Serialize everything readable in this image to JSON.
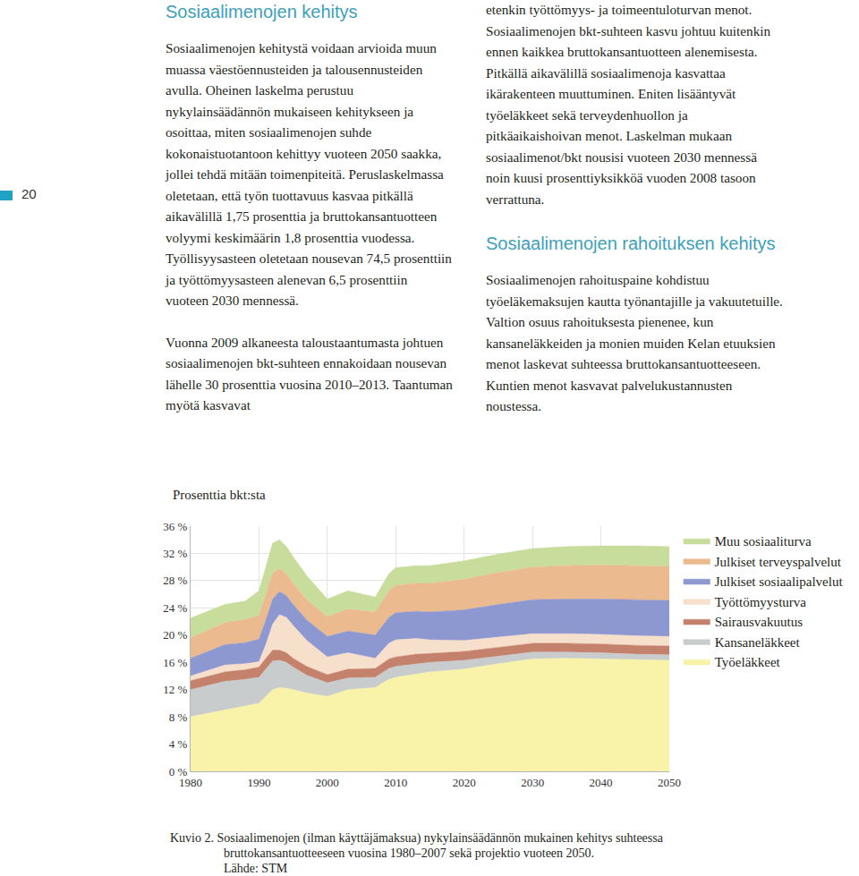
{
  "page_number": "20",
  "columns": [
    [
      {
        "type": "heading",
        "text": "Sosiaalimenojen kehitys"
      },
      {
        "type": "paragraph",
        "text": "Sosiaalimenojen kehitystä voidaan arvioida muun muassa väestöennusteiden ja talousennusteiden avulla. Oheinen laskelma perustuu nykylainsäädännön mukaiseen kehitykseen ja osoittaa, miten sosiaalimenojen suhde kokonaistuotantoon kehittyy vuoteen 2050 saakka, jollei tehdä mitään toimenpiteitä. Peruslaskelmassa oletetaan, että työn tuottavuus kasvaa pitkällä aikavälillä 1,75 prosenttia ja bruttokansantuotteen volyymi keskimäärin 1,8 prosenttia vuodessa. Työllisyysasteen oletetaan nousevan 74,5 prosenttiin ja työttömyysasteen alenevan 6,5 prosenttiin vuoteen 2030 mennessä."
      },
      {
        "type": "paragraph",
        "text": "Vuonna 2009 alkaneesta taloustaantumasta johtuen sosiaalimenojen bkt-suhteen ennakoidaan nousevan lähelle 30 prosenttia vuosina 2010–2013. Taantuman myötä kasvavat"
      }
    ],
    [
      {
        "type": "paragraph",
        "text": "etenkin työttömyys- ja toimeentuloturvan menot. Sosiaalimenojen bkt-suhteen kasvu johtuu kuitenkin ennen kaikkea bruttokansantuotteen alenemisesta. Pitkällä aikavälillä sosiaalimenoja kasvattaa ikärakenteen muuttuminen. Eniten lisääntyvät työeläkkeet sekä terveydenhuollon ja pitkäaikaishoivan menot. Laskelman mukaan sosiaalimenot/bkt nousisi vuoteen 2030 mennessä noin kuusi prosenttiyksikköä vuoden 2008 tasoon verrattuna."
      },
      {
        "type": "heading",
        "text": "Sosiaalimenojen rahoituksen kehitys"
      },
      {
        "type": "paragraph",
        "text": "Sosiaalimenojen rahoituspaine kohdistuu työeläkemaksujen kautta työnantajille ja vakuutetuille. Valtion osuus rahoituksesta pienenee, kun kansaneläkkeiden ja monien muiden Kelan etuuksien menot laskevat suhteessa bruttokansantuotteeseen. Kuntien menot kasvavat palvelukustannusten noustessa."
      }
    ]
  ],
  "figure": {
    "caption": "Kuvio 2. Sosiaalimenojen (ilman käyttäjämaksua) nykylainsäädännön mukainen kehitys suhteessa bruttokansantuotteeseen vuosina 1980–2007 sekä projektio vuoteen 2050.",
    "source": "Lähde: STM"
  },
  "chart_data": {
    "type": "area",
    "stacked": true,
    "ylabel": "Prosenttia bkt:sta",
    "x": [
      1980,
      1985,
      1988,
      1990,
      1991,
      1992,
      1993,
      1994,
      1995,
      1997,
      2000,
      2003,
      2007,
      2009,
      2010,
      2013,
      2015,
      2020,
      2025,
      2030,
      2035,
      2040,
      2045,
      2050
    ],
    "series": [
      {
        "name": "Työeläkkeet",
        "color": "#f8f3a8",
        "values": [
          8.0,
          9.0,
          9.5,
          10.0,
          11.0,
          12.0,
          12.3,
          12.2,
          12.0,
          11.5,
          11.0,
          12.0,
          12.3,
          13.5,
          13.8,
          14.3,
          14.6,
          15.0,
          15.8,
          16.5,
          16.6,
          16.5,
          16.4,
          16.3
        ]
      },
      {
        "name": "Kansaneläkkeet",
        "color": "#c9cccd",
        "values": [
          4.0,
          4.2,
          4.0,
          3.8,
          4.0,
          4.2,
          4.0,
          3.8,
          3.3,
          2.6,
          2.0,
          1.7,
          1.5,
          1.6,
          1.6,
          1.5,
          1.4,
          1.3,
          1.1,
          1.0,
          0.9,
          0.9,
          0.8,
          0.8
        ]
      },
      {
        "name": "Sairausvakuutus",
        "color": "#c4816b",
        "values": [
          1.3,
          1.4,
          1.4,
          1.5,
          1.6,
          1.6,
          1.5,
          1.4,
          1.3,
          1.3,
          1.2,
          1.3,
          1.3,
          1.4,
          1.4,
          1.4,
          1.3,
          1.3,
          1.3,
          1.3,
          1.3,
          1.3,
          1.3,
          1.3
        ]
      },
      {
        "name": "Työttömyysturva",
        "color": "#f6dfcb",
        "values": [
          0.7,
          1.0,
          0.9,
          0.8,
          2.0,
          3.8,
          5.2,
          5.2,
          4.8,
          3.8,
          2.6,
          2.4,
          1.5,
          2.3,
          2.5,
          2.3,
          2.0,
          1.6,
          1.5,
          1.4,
          1.4,
          1.4,
          1.4,
          1.4
        ]
      },
      {
        "name": "Julkiset sosiaalipalvelut",
        "color": "#8d98d0",
        "values": [
          2.6,
          3.0,
          3.1,
          3.3,
          3.6,
          3.7,
          3.4,
          3.2,
          3.1,
          3.0,
          3.0,
          3.2,
          3.4,
          3.8,
          4.0,
          4.0,
          4.1,
          4.5,
          4.8,
          5.0,
          5.1,
          5.2,
          5.3,
          5.3
        ]
      },
      {
        "name": "Julkiset terveyspalvelut",
        "color": "#ebba8e",
        "values": [
          3.0,
          3.2,
          3.4,
          3.5,
          3.8,
          3.8,
          3.4,
          3.2,
          3.1,
          3.0,
          2.9,
          3.2,
          3.4,
          3.9,
          4.0,
          4.1,
          4.2,
          4.5,
          4.7,
          4.8,
          4.9,
          5.0,
          5.0,
          5.0
        ]
      },
      {
        "name": "Muu sosiaaliturva",
        "color": "#c8dd9c",
        "values": [
          2.9,
          2.7,
          2.7,
          3.6,
          4.0,
          4.4,
          4.2,
          4.0,
          3.9,
          3.5,
          2.6,
          2.7,
          2.2,
          2.5,
          2.6,
          2.6,
          2.6,
          2.7,
          2.7,
          2.7,
          2.8,
          2.8,
          2.9,
          2.9
        ]
      }
    ],
    "xlim": [
      1980,
      2050
    ],
    "xticks": [
      1980,
      1990,
      2000,
      2010,
      2020,
      2030,
      2040,
      2050
    ],
    "ylim": [
      0,
      36
    ],
    "yticks": [
      {
        "value": 0,
        "label": "0 %"
      },
      {
        "value": 4,
        "label": "4 %"
      },
      {
        "value": 8,
        "label": "8 %"
      },
      {
        "value": 12,
        "label": "12 %"
      },
      {
        "value": 16,
        "label": "16 %"
      },
      {
        "value": 20,
        "label": "20 %"
      },
      {
        "value": 24,
        "label": "24 %"
      },
      {
        "value": 28,
        "label": "28 %"
      },
      {
        "value": 32,
        "label": "32 %"
      },
      {
        "value": 36,
        "label": "36 %"
      }
    ],
    "grid": true,
    "legend": "right"
  }
}
